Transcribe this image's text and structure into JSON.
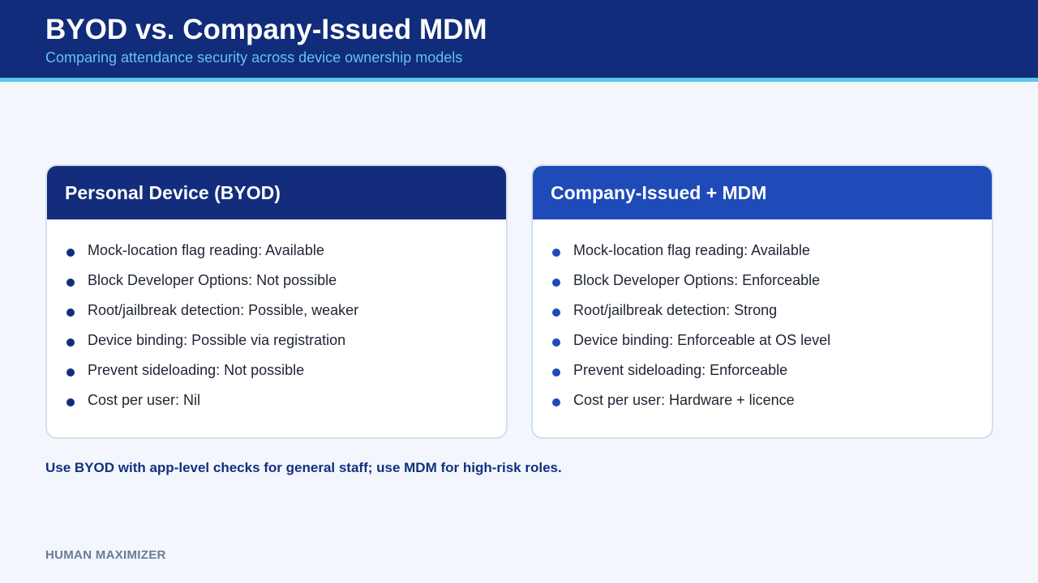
{
  "header": {
    "title": "BYOD vs. Company-Issued MDM",
    "subtitle": "Comparing attendance security across device ownership models"
  },
  "colors": {
    "header_bg": "#102c7a",
    "accent_rule": "#5bc4ea",
    "byod_header": "#132d7c",
    "mdm_header": "#1e4bb8",
    "page_bg": "#f3f7fd"
  },
  "cards": [
    {
      "title": "Personal Device (BYOD)",
      "items": [
        "Mock-location flag reading: Available",
        "Block Developer Options: Not possible",
        "Root/jailbreak detection: Possible, weaker",
        "Device binding: Possible via registration",
        "Prevent sideloading: Not possible",
        "Cost per user: Nil"
      ]
    },
    {
      "title": "Company-Issued + MDM",
      "items": [
        "Mock-location flag reading: Available",
        "Block Developer Options: Enforceable",
        "Root/jailbreak detection: Strong",
        "Device binding: Enforceable at OS level",
        "Prevent sideloading: Enforceable",
        "Cost per user: Hardware + licence"
      ]
    }
  ],
  "recommendation": "Use BYOD with app-level checks for general staff; use MDM for high-risk roles.",
  "footer": {
    "brand": "HUMAN MAXIMIZER"
  }
}
